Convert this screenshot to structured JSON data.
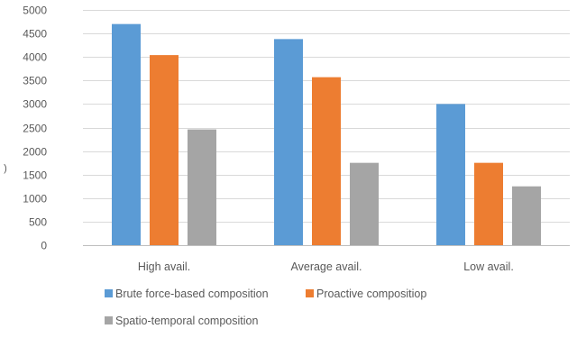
{
  "chart_data": {
    "type": "bar",
    "title": "",
    "xlabel": "",
    "ylabel": ")",
    "categories": [
      "High avail.",
      "Average avail.",
      "Low avail."
    ],
    "series": [
      {
        "name": "Brute force-based composition",
        "values": [
          4700,
          4380,
          3000
        ],
        "color": "#5b9bd5"
      },
      {
        "name": "Proactive compositiop",
        "values": [
          4040,
          3570,
          1750
        ],
        "color": "#ed7d31"
      },
      {
        "name": "Spatio-temporal composition",
        "values": [
          2460,
          1750,
          1250
        ],
        "color": "#a5a5a5"
      }
    ],
    "ylim": [
      0,
      5000
    ],
    "yticks": [
      0,
      500,
      1000,
      1500,
      2000,
      2500,
      3000,
      3500,
      4000,
      4500,
      5000
    ],
    "grid": true,
    "legend_position": "bottom"
  }
}
